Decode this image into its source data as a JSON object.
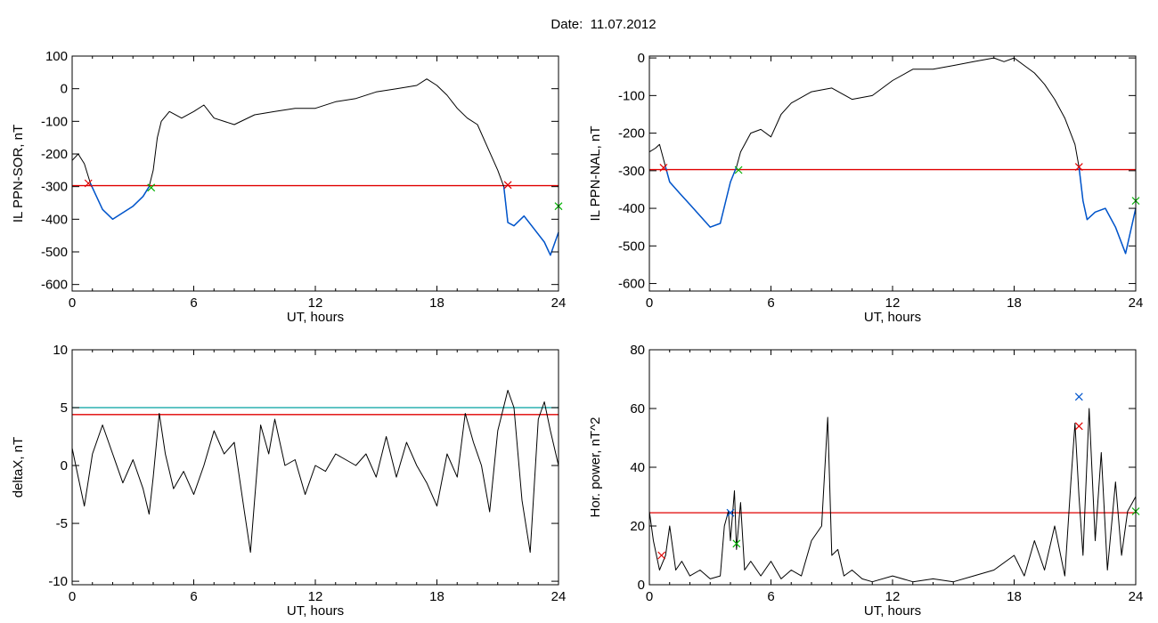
{
  "page": {
    "title": "Date:  11.07.2012"
  },
  "colors": {
    "trace": "#000000",
    "highlight": "#0055cc",
    "threshold": "#e00000",
    "threshold2": "#00a0a0",
    "marker_red": "#e00000",
    "marker_green": "#00b000",
    "marker_blue": "#0055cc"
  },
  "chart_data": [
    {
      "id": "sor",
      "type": "line",
      "title": "",
      "xlabel": "UT, hours",
      "ylabel": "IL PPN-SOR, nT",
      "xlim": [
        0,
        24
      ],
      "ylim": [
        -620,
        100
      ],
      "xticks": [
        0,
        6,
        12,
        18,
        24
      ],
      "yticks": [
        -600,
        -500,
        -400,
        -300,
        -200,
        -100,
        0,
        100
      ],
      "series": [
        {
          "role": "trace",
          "x": [
            0,
            0.3,
            0.6,
            0.9,
            1.2,
            1.5,
            2.0,
            2.5,
            3.0,
            3.5,
            3.8,
            4.0,
            4.2,
            4.4,
            4.8,
            5.4,
            6.0,
            6.5,
            7.0,
            8.0,
            9.0,
            10.0,
            11.0,
            12.0,
            13.0,
            14.0,
            15.0,
            16.0,
            17.0,
            17.5,
            18.0,
            18.5,
            19.0,
            19.5,
            20.0,
            20.5,
            21.0,
            21.3,
            21.5,
            21.8,
            22.3,
            22.8,
            23.3,
            23.6,
            24.0
          ],
          "y": [
            -220,
            -200,
            -230,
            -290,
            -330,
            -370,
            -400,
            -380,
            -360,
            -330,
            -300,
            -250,
            -150,
            -100,
            -70,
            -90,
            -70,
            -50,
            -90,
            -110,
            -80,
            -70,
            -60,
            -60,
            -40,
            -30,
            -10,
            0,
            10,
            30,
            10,
            -20,
            -60,
            -90,
            -110,
            -180,
            -250,
            -300,
            -410,
            -420,
            -390,
            -430,
            -470,
            -510,
            -440
          ]
        },
        {
          "role": "highlight",
          "x": [
            0.9,
            1.2,
            1.5,
            2.0,
            2.5,
            3.0,
            3.5,
            3.8
          ],
          "y": [
            -290,
            -330,
            -370,
            -400,
            -380,
            -360,
            -330,
            -300
          ]
        },
        {
          "role": "highlight",
          "x": [
            21.3,
            21.5,
            21.8,
            22.3,
            22.8,
            23.3,
            23.6,
            24.0
          ],
          "y": [
            -300,
            -410,
            -420,
            -390,
            -430,
            -470,
            -510,
            -440
          ]
        }
      ],
      "hlines": [
        {
          "y": -297,
          "color": "#e00000"
        }
      ],
      "markers": [
        {
          "x": 0.8,
          "y": -290,
          "color": "#e00000"
        },
        {
          "x": 3.9,
          "y": -303,
          "color": "#00b000"
        },
        {
          "x": 21.5,
          "y": -295,
          "color": "#e00000"
        },
        {
          "x": 24.0,
          "y": -360,
          "color": "#00b000"
        }
      ]
    },
    {
      "id": "nal",
      "type": "line",
      "title": "",
      "xlabel": "UT, hours",
      "ylabel": "IL PPN-NAL, nT",
      "xlim": [
        0,
        24
      ],
      "ylim": [
        -620,
        5
      ],
      "xticks": [
        0,
        6,
        12,
        18,
        24
      ],
      "yticks": [
        -600,
        -500,
        -400,
        -300,
        -200,
        -100,
        0
      ],
      "series": [
        {
          "role": "trace",
          "x": [
            0,
            0.3,
            0.5,
            0.8,
            1.0,
            1.5,
            2.0,
            2.5,
            3.0,
            3.5,
            4.0,
            4.3,
            4.5,
            5.0,
            5.5,
            6.0,
            6.5,
            7.0,
            8.0,
            9.0,
            10.0,
            11.0,
            12.0,
            13.0,
            14.0,
            15.0,
            16.0,
            17.0,
            17.5,
            18.0,
            18.5,
            19.0,
            19.5,
            20.0,
            20.5,
            21.0,
            21.2,
            21.4,
            21.6,
            22.0,
            22.5,
            23.0,
            23.5,
            24.0
          ],
          "y": [
            -250,
            -240,
            -230,
            -290,
            -330,
            -360,
            -390,
            -420,
            -450,
            -440,
            -330,
            -290,
            -250,
            -200,
            -190,
            -210,
            -150,
            -120,
            -90,
            -80,
            -110,
            -100,
            -60,
            -30,
            -30,
            -20,
            -10,
            0,
            -10,
            0,
            -20,
            -40,
            -70,
            -110,
            -160,
            -230,
            -290,
            -380,
            -430,
            -410,
            -400,
            -450,
            -520,
            -400
          ]
        },
        {
          "role": "highlight",
          "x": [
            0.8,
            1.0,
            1.5,
            2.0,
            2.5,
            3.0,
            3.5,
            4.0,
            4.3
          ],
          "y": [
            -290,
            -330,
            -360,
            -390,
            -420,
            -450,
            -440,
            -330,
            -290
          ]
        },
        {
          "role": "highlight",
          "x": [
            21.2,
            21.4,
            21.6,
            22.0,
            22.5,
            23.0,
            23.5,
            24.0
          ],
          "y": [
            -290,
            -380,
            -430,
            -410,
            -400,
            -450,
            -520,
            -400
          ]
        }
      ],
      "hlines": [
        {
          "y": -297,
          "color": "#e00000"
        }
      ],
      "markers": [
        {
          "x": 0.7,
          "y": -292,
          "color": "#e00000"
        },
        {
          "x": 4.4,
          "y": -298,
          "color": "#00b000"
        },
        {
          "x": 21.2,
          "y": -290,
          "color": "#e00000"
        },
        {
          "x": 24.0,
          "y": -380,
          "color": "#00b000"
        }
      ]
    },
    {
      "id": "deltax",
      "type": "line",
      "title": "",
      "xlabel": "UT, hours",
      "ylabel": "deltaX, nT",
      "xlim": [
        0,
        24
      ],
      "ylim": [
        -10.3,
        10
      ],
      "xticks": [
        0,
        6,
        12,
        18,
        24
      ],
      "yticks": [
        -10,
        -5,
        0,
        5,
        10
      ],
      "series": [
        {
          "role": "trace",
          "x": [
            0,
            0.3,
            0.6,
            1.0,
            1.5,
            2.0,
            2.5,
            3.0,
            3.5,
            3.8,
            4.0,
            4.3,
            4.6,
            5.0,
            5.5,
            6.0,
            6.5,
            7.0,
            7.5,
            8.0,
            8.5,
            8.8,
            9.0,
            9.3,
            9.7,
            10.0,
            10.5,
            11.0,
            11.5,
            12.0,
            12.5,
            13.0,
            13.5,
            14.0,
            14.5,
            15.0,
            15.5,
            16.0,
            16.5,
            17.0,
            17.5,
            18.0,
            18.5,
            19.0,
            19.4,
            19.8,
            20.2,
            20.6,
            21.0,
            21.5,
            21.8,
            22.2,
            22.6,
            23.0,
            23.3,
            23.6,
            24.0
          ],
          "y": [
            1.5,
            -1,
            -3.5,
            1,
            3.5,
            1,
            -1.5,
            0.5,
            -2,
            -4.2,
            -1,
            4.5,
            1,
            -2,
            -0.5,
            -2.5,
            0,
            3,
            1,
            2,
            -4,
            -7.5,
            -3,
            3.5,
            1,
            4,
            0,
            0.5,
            -2.5,
            0,
            -0.5,
            1,
            0.5,
            0,
            1,
            -1,
            2.5,
            -1,
            2,
            0,
            -1.5,
            -3.5,
            1,
            -1,
            4.5,
            2,
            0,
            -4,
            3,
            6.5,
            5,
            -3,
            -7.5,
            4,
            5.5,
            3,
            0
          ]
        }
      ],
      "hlines": [
        {
          "y": 5.0,
          "color": "#00a0a0"
        },
        {
          "y": 4.4,
          "color": "#e00000"
        }
      ],
      "markers": []
    },
    {
      "id": "power",
      "type": "line",
      "title": "",
      "xlabel": "UT, hours",
      "ylabel": "Hor. power, nT^2",
      "xlim": [
        0,
        24
      ],
      "ylim": [
        0,
        80
      ],
      "xticks": [
        0,
        6,
        12,
        18,
        24
      ],
      "yticks": [
        0,
        20,
        40,
        60,
        80
      ],
      "series": [
        {
          "role": "trace",
          "x": [
            0,
            0.2,
            0.5,
            0.8,
            1.0,
            1.3,
            1.6,
            2.0,
            2.5,
            3.0,
            3.5,
            3.7,
            3.9,
            4.0,
            4.2,
            4.3,
            4.5,
            4.7,
            5.0,
            5.5,
            6.0,
            6.5,
            7.0,
            7.5,
            8.0,
            8.5,
            8.8,
            9.0,
            9.3,
            9.6,
            10.0,
            10.5,
            11.0,
            12.0,
            13.0,
            14.0,
            15.0,
            16.0,
            17.0,
            18.0,
            18.5,
            19.0,
            19.5,
            20.0,
            20.5,
            20.8,
            21.0,
            21.2,
            21.4,
            21.7,
            22.0,
            22.3,
            22.6,
            23.0,
            23.3,
            23.6,
            24.0
          ],
          "y": [
            25,
            15,
            5,
            10,
            20,
            5,
            8,
            3,
            5,
            2,
            3,
            20,
            25,
            15,
            32,
            12,
            28,
            5,
            8,
            3,
            8,
            2,
            5,
            3,
            15,
            20,
            57,
            10,
            12,
            3,
            5,
            2,
            1,
            3,
            1,
            2,
            1,
            3,
            5,
            10,
            3,
            15,
            5,
            20,
            3,
            35,
            55,
            30,
            10,
            60,
            15,
            45,
            5,
            35,
            10,
            25,
            30
          ]
        }
      ],
      "hlines": [
        {
          "y": 24.5,
          "color": "#e00000"
        }
      ],
      "markers": [
        {
          "x": 0.6,
          "y": 10,
          "color": "#e00000"
        },
        {
          "x": 4.0,
          "y": 24.5,
          "color": "#0055cc"
        },
        {
          "x": 4.3,
          "y": 14,
          "color": "#00b000"
        },
        {
          "x": 21.2,
          "y": 64,
          "color": "#0055cc"
        },
        {
          "x": 21.2,
          "y": 54,
          "color": "#e00000"
        },
        {
          "x": 24.0,
          "y": 25,
          "color": "#00b000"
        }
      ]
    }
  ]
}
